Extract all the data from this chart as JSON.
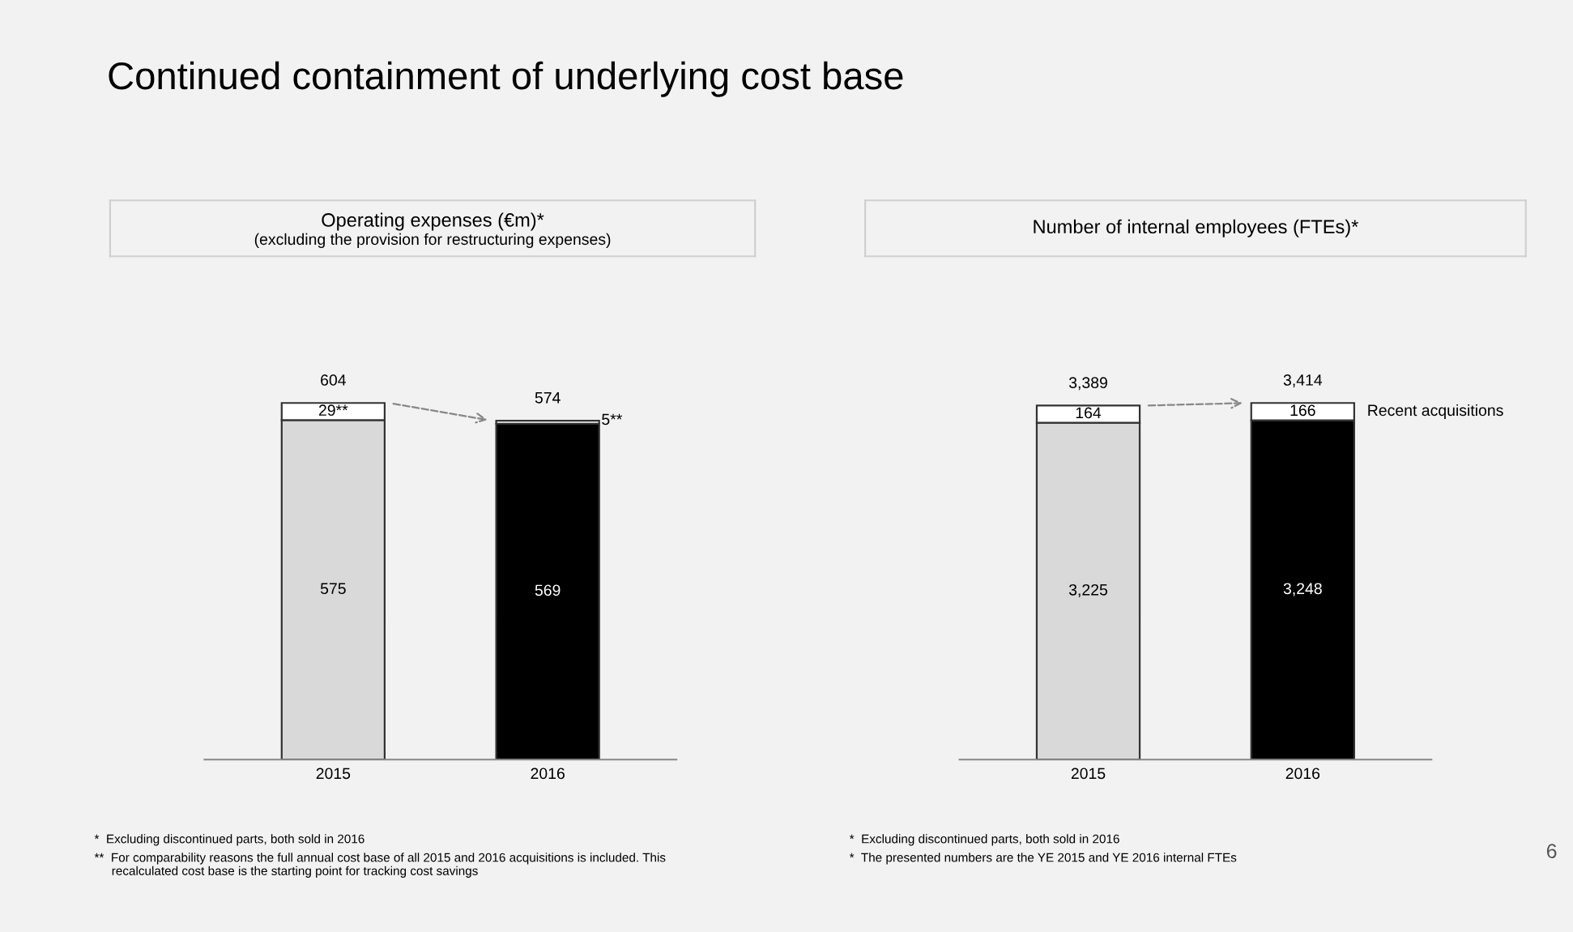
{
  "chart_data": [
    {
      "type": "other",
      "title": "Continued containment of underlying cost base",
      "annotations": [
        "6"
      ]
    },
    {
      "type": "bar",
      "stacked": true,
      "title": "Operating expenses (€m)*",
      "subtitle": "(excluding the provision for restructuring expenses)",
      "categories": [
        "2015",
        "2016"
      ],
      "series": [
        {
          "colors": [
            "#d9d9d9",
            "#000000"
          ],
          "values": [
            575,
            569
          ],
          "value_labels": [
            "575",
            "569"
          ]
        },
        {
          "color": "#ffffff",
          "values": [
            29,
            5
          ],
          "value_labels": [
            "29**",
            "5**"
          ]
        }
      ],
      "totals": [
        "604",
        "574"
      ],
      "annotations": [
        "*  Excluding discontinued parts, both sold in 2016",
        "**  For comparability reasons the full annual cost base of all 2015 and 2016 acquisitions is included. This\n     recalculated cost base is the starting point for tracking cost savings"
      ]
    },
    {
      "type": "bar",
      "stacked": true,
      "title": "Number of internal employees (FTEs)*",
      "categories": [
        "2015",
        "2016"
      ],
      "series": [
        {
          "colors": [
            "#d9d9d9",
            "#000000"
          ],
          "values": [
            3225,
            3248
          ],
          "value_labels": [
            "3,225",
            "3,248"
          ]
        },
        {
          "name": "Recent acquisitions",
          "color": "#ffffff",
          "values": [
            164,
            166
          ],
          "value_labels": [
            "164",
            "166"
          ]
        }
      ],
      "totals": [
        "3,389",
        "3,414"
      ],
      "annotations": [
        "*  Excluding discontinued parts, both sold in 2016",
        "*  The presented numbers are the YE 2015 and YE 2016 internal FTEs"
      ]
    }
  ]
}
